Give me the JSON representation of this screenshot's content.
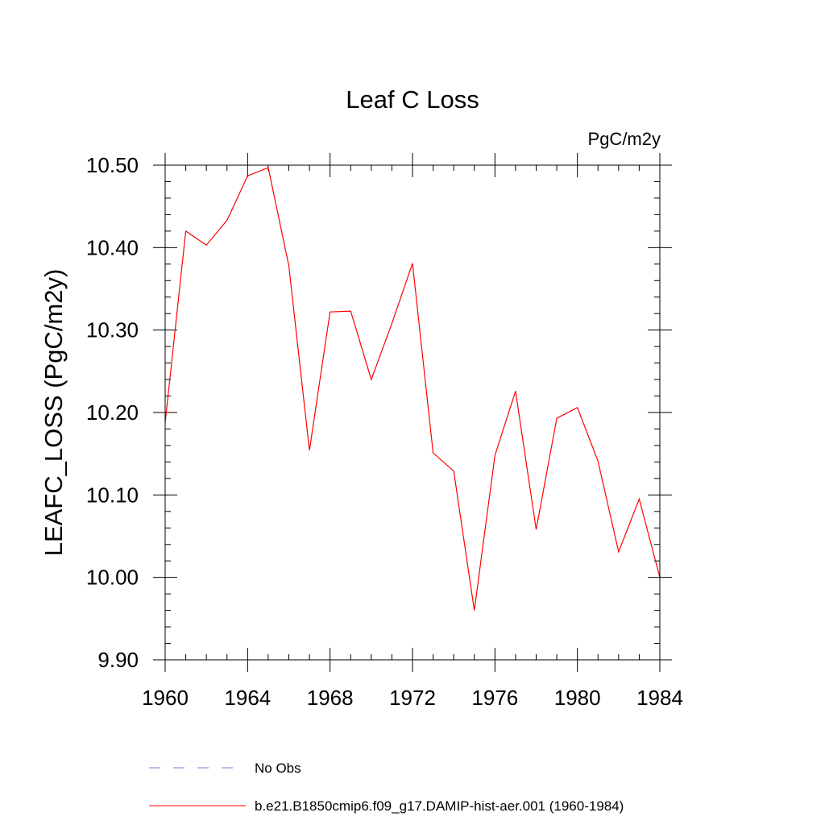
{
  "chart_data": {
    "type": "line",
    "title": "Leaf C Loss",
    "units": "PgC/m2y",
    "xlabel": "",
    "ylabel": "LEAFC_LOSS  (PgC/m2y)",
    "xlim": [
      1960,
      1984
    ],
    "ylim": [
      9.9,
      10.5
    ],
    "x_ticks": [
      1960,
      1964,
      1968,
      1972,
      1976,
      1980,
      1984
    ],
    "x_tick_labels": [
      "1960",
      "1964",
      "1968",
      "1972",
      "1976",
      "1980",
      "1984"
    ],
    "y_ticks": [
      9.9,
      10.0,
      10.1,
      10.2,
      10.3,
      10.4,
      10.5
    ],
    "y_tick_labels": [
      "9.90",
      "10.00",
      "10.10",
      "10.20",
      "10.30",
      "10.40",
      "10.50"
    ],
    "grid": false,
    "legend_position": "bottom",
    "series": [
      {
        "name": "b.e21.B1850cmip6.f09_g17.DAMIP-hist-aer.001 (1960-1984)",
        "color": "#ff0000",
        "dash": "solid",
        "x": [
          1960,
          1961,
          1962,
          1963,
          1964,
          1965,
          1966,
          1967,
          1968,
          1969,
          1970,
          1971,
          1972,
          1973,
          1974,
          1975,
          1976,
          1977,
          1978,
          1979,
          1980,
          1981,
          1982,
          1983,
          1984
        ],
        "y": [
          10.188,
          10.42,
          10.403,
          10.433,
          10.487,
          10.497,
          10.378,
          10.154,
          10.322,
          10.323,
          10.24,
          10.308,
          10.381,
          10.151,
          10.129,
          9.96,
          10.148,
          10.226,
          10.058,
          10.193,
          10.206,
          10.141,
          10.031,
          10.095,
          10.0
        ]
      }
    ],
    "legend": [
      {
        "label": "No Obs",
        "color": "#7b7bd6",
        "dash": "dashed"
      },
      {
        "label": "b.e21.B1850cmip6.f09_g17.DAMIP-hist-aer.001 (1960-1984)",
        "color": "#ff0000",
        "dash": "solid"
      }
    ]
  }
}
